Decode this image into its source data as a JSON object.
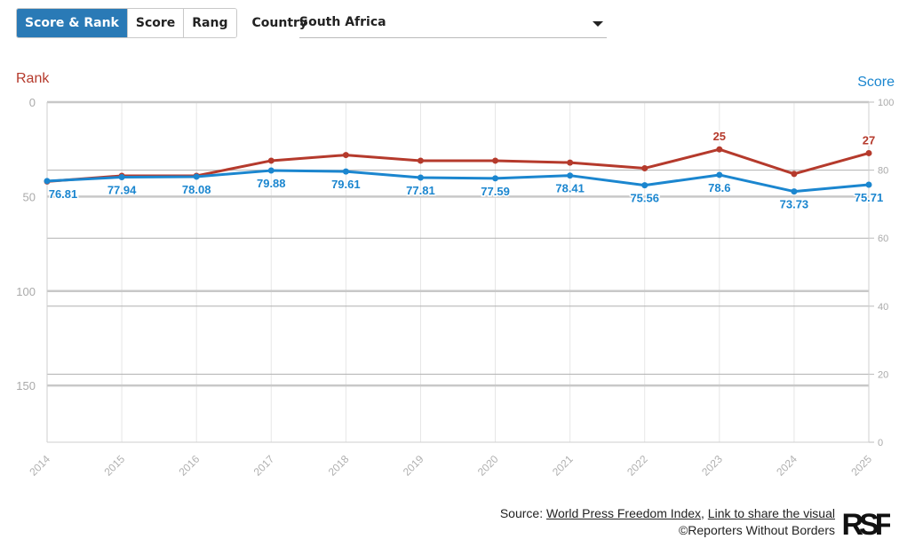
{
  "toolbar": {
    "tabs": [
      {
        "label": "Score & Rank",
        "active": true
      },
      {
        "label": "Score",
        "active": false
      },
      {
        "label": "Rang",
        "active": false
      }
    ],
    "country_label": "Country",
    "country_value": "South Africa"
  },
  "chart_data": {
    "type": "line",
    "x": [
      "2014",
      "2015",
      "2016",
      "2017",
      "2018",
      "2019",
      "2020",
      "2021",
      "2022",
      "2023",
      "2024",
      "2025"
    ],
    "left_axis": {
      "label": "Rank",
      "ticks": [
        "0",
        "50",
        "100",
        "150"
      ],
      "range": [
        0,
        180
      ],
      "reversed": true
    },
    "right_axis": {
      "label": "Score",
      "ticks": [
        "0",
        "20",
        "40",
        "60",
        "80",
        "100"
      ],
      "range": [
        0,
        100
      ]
    },
    "series": [
      {
        "name": "Rank",
        "axis": "left",
        "color": "#b53a2c",
        "values": [
          42,
          39,
          39,
          31,
          28,
          31,
          31,
          32,
          35,
          25,
          38,
          27
        ],
        "labels": [
          "",
          "",
          "",
          "",
          "",
          "",
          "",
          "",
          "",
          "25",
          "",
          "27"
        ]
      },
      {
        "name": "Score",
        "axis": "right",
        "color": "#1b86cf",
        "values": [
          76.81,
          77.94,
          78.08,
          79.88,
          79.61,
          77.81,
          77.59,
          78.41,
          75.56,
          78.6,
          73.73,
          75.71
        ],
        "labels": [
          "76.81",
          "77.94",
          "78.08",
          "79.88",
          "79.61",
          "77.81",
          "77.59",
          "78.41",
          "75.56",
          "78.6",
          "73.73",
          "75.71"
        ]
      }
    ],
    "grid": true
  },
  "footer": {
    "source_prefix": "Source: ",
    "source_link": "World Press Freedom Index",
    "separator": ", ",
    "share_link": "Link to share the visual",
    "copyright": "©Reporters Without Borders",
    "logo_text": "RSF"
  }
}
